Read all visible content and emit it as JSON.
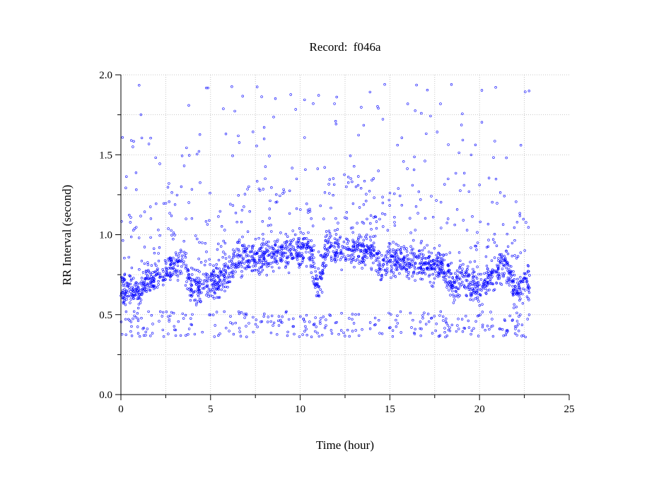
{
  "chart_data": {
    "type": "scatter",
    "title": "Record:  f046a",
    "xlabel": "Time (hour)",
    "ylabel": "RR Interval (second)",
    "xlim": [
      0,
      25
    ],
    "ylim": [
      0,
      2
    ],
    "xticks": [
      0,
      5,
      10,
      15,
      20,
      25
    ],
    "xtick_labels": [
      "0",
      "5",
      "10",
      "15",
      "20",
      "25"
    ],
    "yticks": [
      0,
      0.5,
      1,
      1.5,
      2
    ],
    "ytick_labels": [
      "0.0",
      "0.5",
      "1.0",
      "1.5",
      "2.0"
    ],
    "grid": true,
    "legend": "none",
    "marker": "open-circle",
    "series_color": "#0000ff",
    "record_duration_hours": 22.8,
    "series": [
      {
        "values_description_points": [],
        "x": [
          0.0,
          0.5,
          1.0,
          1.5,
          2.0,
          2.5,
          3.0,
          3.5,
          4.0,
          4.5,
          5.0,
          5.5,
          6.0,
          6.5,
          7.0,
          7.5,
          8.0,
          8.5,
          9.0,
          9.5,
          10.0,
          10.5,
          11.0,
          11.5,
          12.0,
          12.5,
          13.0,
          13.5,
          14.0,
          14.5,
          15.0,
          15.5,
          16.0,
          16.5,
          17.0,
          17.5,
          18.0,
          18.5,
          19.0,
          19.5,
          20.0,
          20.5,
          21.0,
          21.5,
          22.0,
          22.5,
          22.8
        ],
        "y": [
          0.67,
          0.66,
          0.63,
          0.72,
          0.74,
          0.77,
          0.8,
          0.83,
          0.66,
          0.67,
          0.7,
          0.72,
          0.77,
          0.84,
          0.86,
          0.84,
          0.87,
          0.87,
          0.89,
          0.9,
          0.9,
          0.92,
          0.65,
          0.92,
          0.91,
          0.91,
          0.91,
          0.9,
          0.91,
          0.8,
          0.85,
          0.85,
          0.82,
          0.82,
          0.8,
          0.8,
          0.8,
          0.67,
          0.74,
          0.7,
          0.67,
          0.74,
          0.78,
          0.83,
          0.63,
          0.7,
          0.7
        ]
      }
    ]
  }
}
